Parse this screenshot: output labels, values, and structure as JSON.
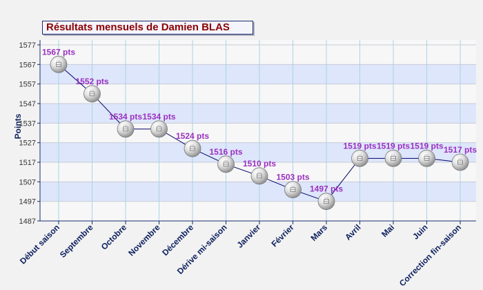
{
  "chart_data": {
    "type": "line",
    "title": "Résultats mensuels de Damien BLAS",
    "ylabel": "Points",
    "xlabel": "",
    "ylim": [
      1487,
      1577
    ],
    "yticks": [
      1487,
      1497,
      1507,
      1517,
      1527,
      1537,
      1547,
      1557,
      1567,
      1577
    ],
    "categories": [
      "Début saison",
      "Septembre",
      "Octobre",
      "Novembre",
      "Décembre",
      "Dérive mi-saison",
      "Janvier",
      "Février",
      "Mars",
      "Avril",
      "Mai",
      "Juin",
      "Correction fin-saison"
    ],
    "values": [
      1567,
      1552,
      1534,
      1534,
      1524,
      1516,
      1510,
      1503,
      1497,
      1519,
      1519,
      1519,
      1517
    ],
    "data_labels": [
      "1567 pts",
      "1552 pts",
      "1534 pts",
      "1534 pts",
      "1524 pts",
      "1516 pts",
      "1510 pts",
      "1503 pts",
      "1497 pts",
      "1519 pts",
      "1519 pts",
      "1519 pts",
      "1517 pts"
    ],
    "grid": true,
    "colors": {
      "line": "#000066",
      "data_label": "#9b30c0",
      "axis_text": "#0b1f5e",
      "band_blue": "#dde6fb",
      "band_light": "#f7f7f7",
      "gridline": "#a9d3e6",
      "axis": "#1a2a6c",
      "title_text": "#8b0000"
    }
  }
}
